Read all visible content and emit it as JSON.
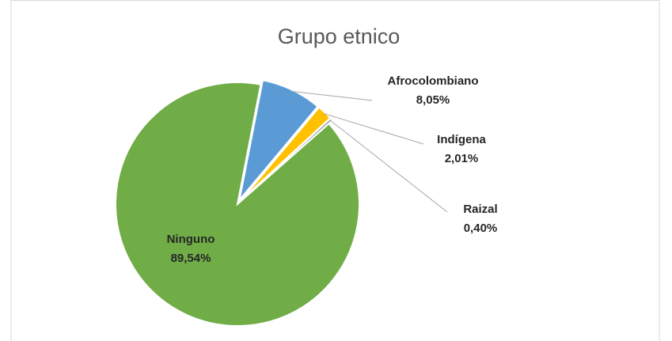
{
  "chart_data": {
    "type": "pie",
    "title": "Grupo etnico",
    "categories": [
      "Afrocolombiano",
      "Indígena",
      "Raizal",
      "Ninguno"
    ],
    "values": [
      8.05,
      2.01,
      0.4,
      89.54
    ],
    "value_labels": [
      "8,05%",
      "2,01%",
      "0,40%",
      "89,54%"
    ],
    "colors": [
      "#5b9bd5",
      "#ffc000",
      "#a5a5a5",
      "#70ad47"
    ]
  }
}
